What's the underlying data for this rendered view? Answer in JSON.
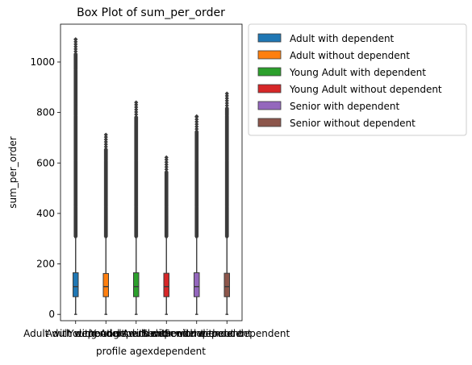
{
  "chart_data": {
    "type": "box",
    "title": "Box Plot of sum_per_order",
    "xlabel": "profile agexdependent",
    "ylabel": "sum_per_order",
    "ylim": [
      -25,
      1150
    ],
    "yticks": [
      0,
      200,
      400,
      600,
      800,
      1000
    ],
    "legend_position": "outside-top-right",
    "categories": [
      "Adult with dependent",
      "Adult without dependent",
      "Young Adult with dependent",
      "Young Adult without dependent",
      "Senior with dependent",
      "Senior without dependent"
    ],
    "series": [
      {
        "name": "Adult with dependent",
        "color": "#1f77b4",
        "q1": 70,
        "median": 110,
        "q3": 165,
        "whisker_low": 0,
        "whisker_high": 305,
        "max": 1090
      },
      {
        "name": "Adult without dependent",
        "color": "#ff7f0e",
        "q1": 70,
        "median": 110,
        "q3": 162,
        "whisker_low": 0,
        "whisker_high": 305,
        "max": 712
      },
      {
        "name": "Young Adult with dependent",
        "color": "#2ca02c",
        "q1": 70,
        "median": 110,
        "q3": 165,
        "whisker_low": 0,
        "whisker_high": 305,
        "max": 840
      },
      {
        "name": "Young Adult without dependent",
        "color": "#d62728",
        "q1": 70,
        "median": 110,
        "q3": 163,
        "whisker_low": 0,
        "whisker_high": 305,
        "max": 622
      },
      {
        "name": "Senior with dependent",
        "color": "#9467bd",
        "q1": 70,
        "median": 110,
        "q3": 165,
        "whisker_low": 0,
        "whisker_high": 305,
        "max": 785
      },
      {
        "name": "Senior without dependent",
        "color": "#8c564b",
        "q1": 70,
        "median": 110,
        "q3": 163,
        "whisker_low": 0,
        "whisker_high": 305,
        "max": 875
      }
    ]
  }
}
